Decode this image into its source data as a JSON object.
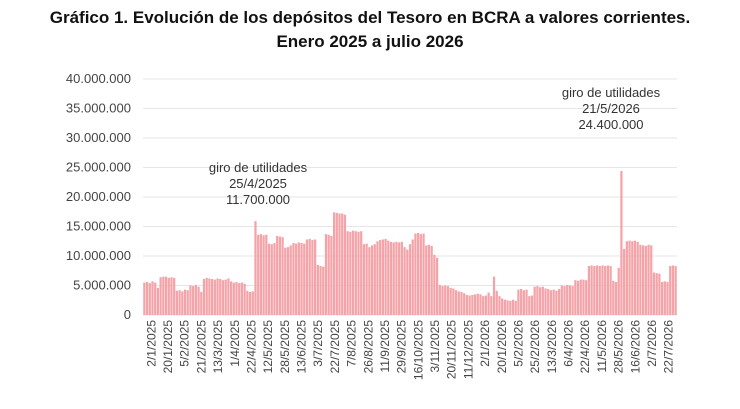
{
  "title_line1": "Gráfico 1. Evolución de los depósitos del Tesoro en BCRA a valores corrientes.",
  "title_line2": "Enero 2025 a julio 2026",
  "chart_data": {
    "type": "bar",
    "title": "Gráfico 1. Evolución de los depósitos del Tesoro en BCRA a valores corrientes. Enero 2025 a julio 2026",
    "xlabel": "",
    "ylabel": "",
    "ylim": [
      0,
      40000000
    ],
    "y_ticks": [
      0,
      5000000,
      10000000,
      15000000,
      20000000,
      25000000,
      30000000,
      35000000,
      40000000
    ],
    "y_tick_labels": [
      "0",
      "5.000.000",
      "10.000.000",
      "15.000.000",
      "20.000.000",
      "25.000.000",
      "30.000.000",
      "35.000.000",
      "40.000.000"
    ],
    "x_tick_labels": [
      "2/1/2025",
      "20/1/2025",
      "5/2/2025",
      "21/2/2025",
      "13/3/2025",
      "1/4/2025",
      "22/4/2025",
      "12/5/2025",
      "28/5/2025",
      "13/6/2025",
      "3/7/2025",
      "22/7/2025",
      "7/8/2025",
      "26/8/2025",
      "11/9/2025",
      "29/9/2025",
      "16/10/2025",
      "3/11/2025",
      "20/11/2025",
      "11/12/2025",
      "2/1/2026",
      "20/1/2026",
      "5/2/2026",
      "25/2/2026",
      "13/3/2026",
      "6/4/2026",
      "22/4/2026",
      "11/5/2026",
      "28/5/2026",
      "16/6/2026",
      "2/7/2026",
      "22/7/2026"
    ],
    "bar_color": "#f4a3a8",
    "values": [
      5500000,
      5600000,
      5400000,
      5700000,
      5500000,
      4600000,
      6400000,
      6500000,
      6500000,
      6300000,
      6400000,
      6300000,
      4100000,
      4200000,
      4000000,
      4300000,
      4200000,
      5000000,
      4900000,
      5100000,
      4800000,
      3900000,
      6100000,
      6300000,
      6200000,
      6100000,
      6000000,
      6200000,
      6100000,
      5900000,
      6000000,
      6200000,
      5700000,
      5500000,
      5600000,
      5400000,
      5500000,
      5300000,
      4100000,
      3900000,
      4000000,
      15900000,
      13600000,
      13700000,
      13500000,
      13600000,
      12100000,
      12000000,
      12200000,
      13400000,
      13300000,
      13200000,
      11400000,
      11500000,
      11800000,
      12200000,
      12100000,
      12300000,
      12200000,
      12100000,
      12800000,
      12900000,
      12700000,
      12800000,
      8500000,
      8300000,
      8200000,
      13700000,
      13600000,
      13400000,
      17400000,
      17300000,
      17200000,
      17200000,
      17000000,
      14200000,
      14100000,
      14300000,
      14200000,
      14100000,
      14200000,
      12000000,
      12100000,
      11500000,
      11800000,
      12000000,
      12500000,
      12700000,
      12800000,
      12900000,
      12600000,
      12400000,
      12300000,
      12400000,
      12300000,
      12400000,
      11500000,
      11100000,
      12000000,
      12800000,
      13800000,
      13900000,
      13700000,
      13800000,
      11800000,
      11900000,
      11700000,
      10200000,
      9700000,
      5100000,
      4900000,
      5000000,
      4900000,
      4600000,
      4500000,
      4200000,
      4000000,
      3900000,
      3700000,
      3400000,
      3300000,
      3400000,
      3500000,
      3600000,
      3500000,
      3200000,
      3300000,
      3800000,
      3200000,
      6500000,
      4100000,
      3200000,
      2800000,
      2600000,
      2500000,
      2400000,
      2600000,
      2400000,
      4300000,
      4400000,
      4200000,
      4300000,
      3200000,
      3300000,
      4800000,
      4900000,
      4700000,
      4800000,
      4500000,
      4400000,
      4200000,
      4300000,
      4100000,
      4400000,
      5000000,
      4900000,
      5100000,
      5000000,
      4900000,
      5900000,
      5800000,
      6000000,
      6000000,
      5900000,
      8300000,
      8400000,
      8300000,
      8400000,
      8300000,
      8400000,
      8300000,
      8400000,
      8300000,
      5800000,
      5600000,
      8000000,
      24400000,
      11200000,
      12500000,
      12600000,
      12500000,
      12600000,
      12400000,
      11900000,
      11800000,
      11700000,
      11900000,
      11800000,
      7200000,
      7100000,
      7000000,
      5600000,
      5700000,
      5600000,
      8300000,
      8400000,
      8300000
    ],
    "annotations": [
      {
        "lines": [
          "giro de utilidades",
          "25/4/2025",
          "11.700.000"
        ]
      },
      {
        "lines": [
          "giro de utilidades",
          "21/5/2026",
          "24.400.000"
        ]
      }
    ]
  }
}
